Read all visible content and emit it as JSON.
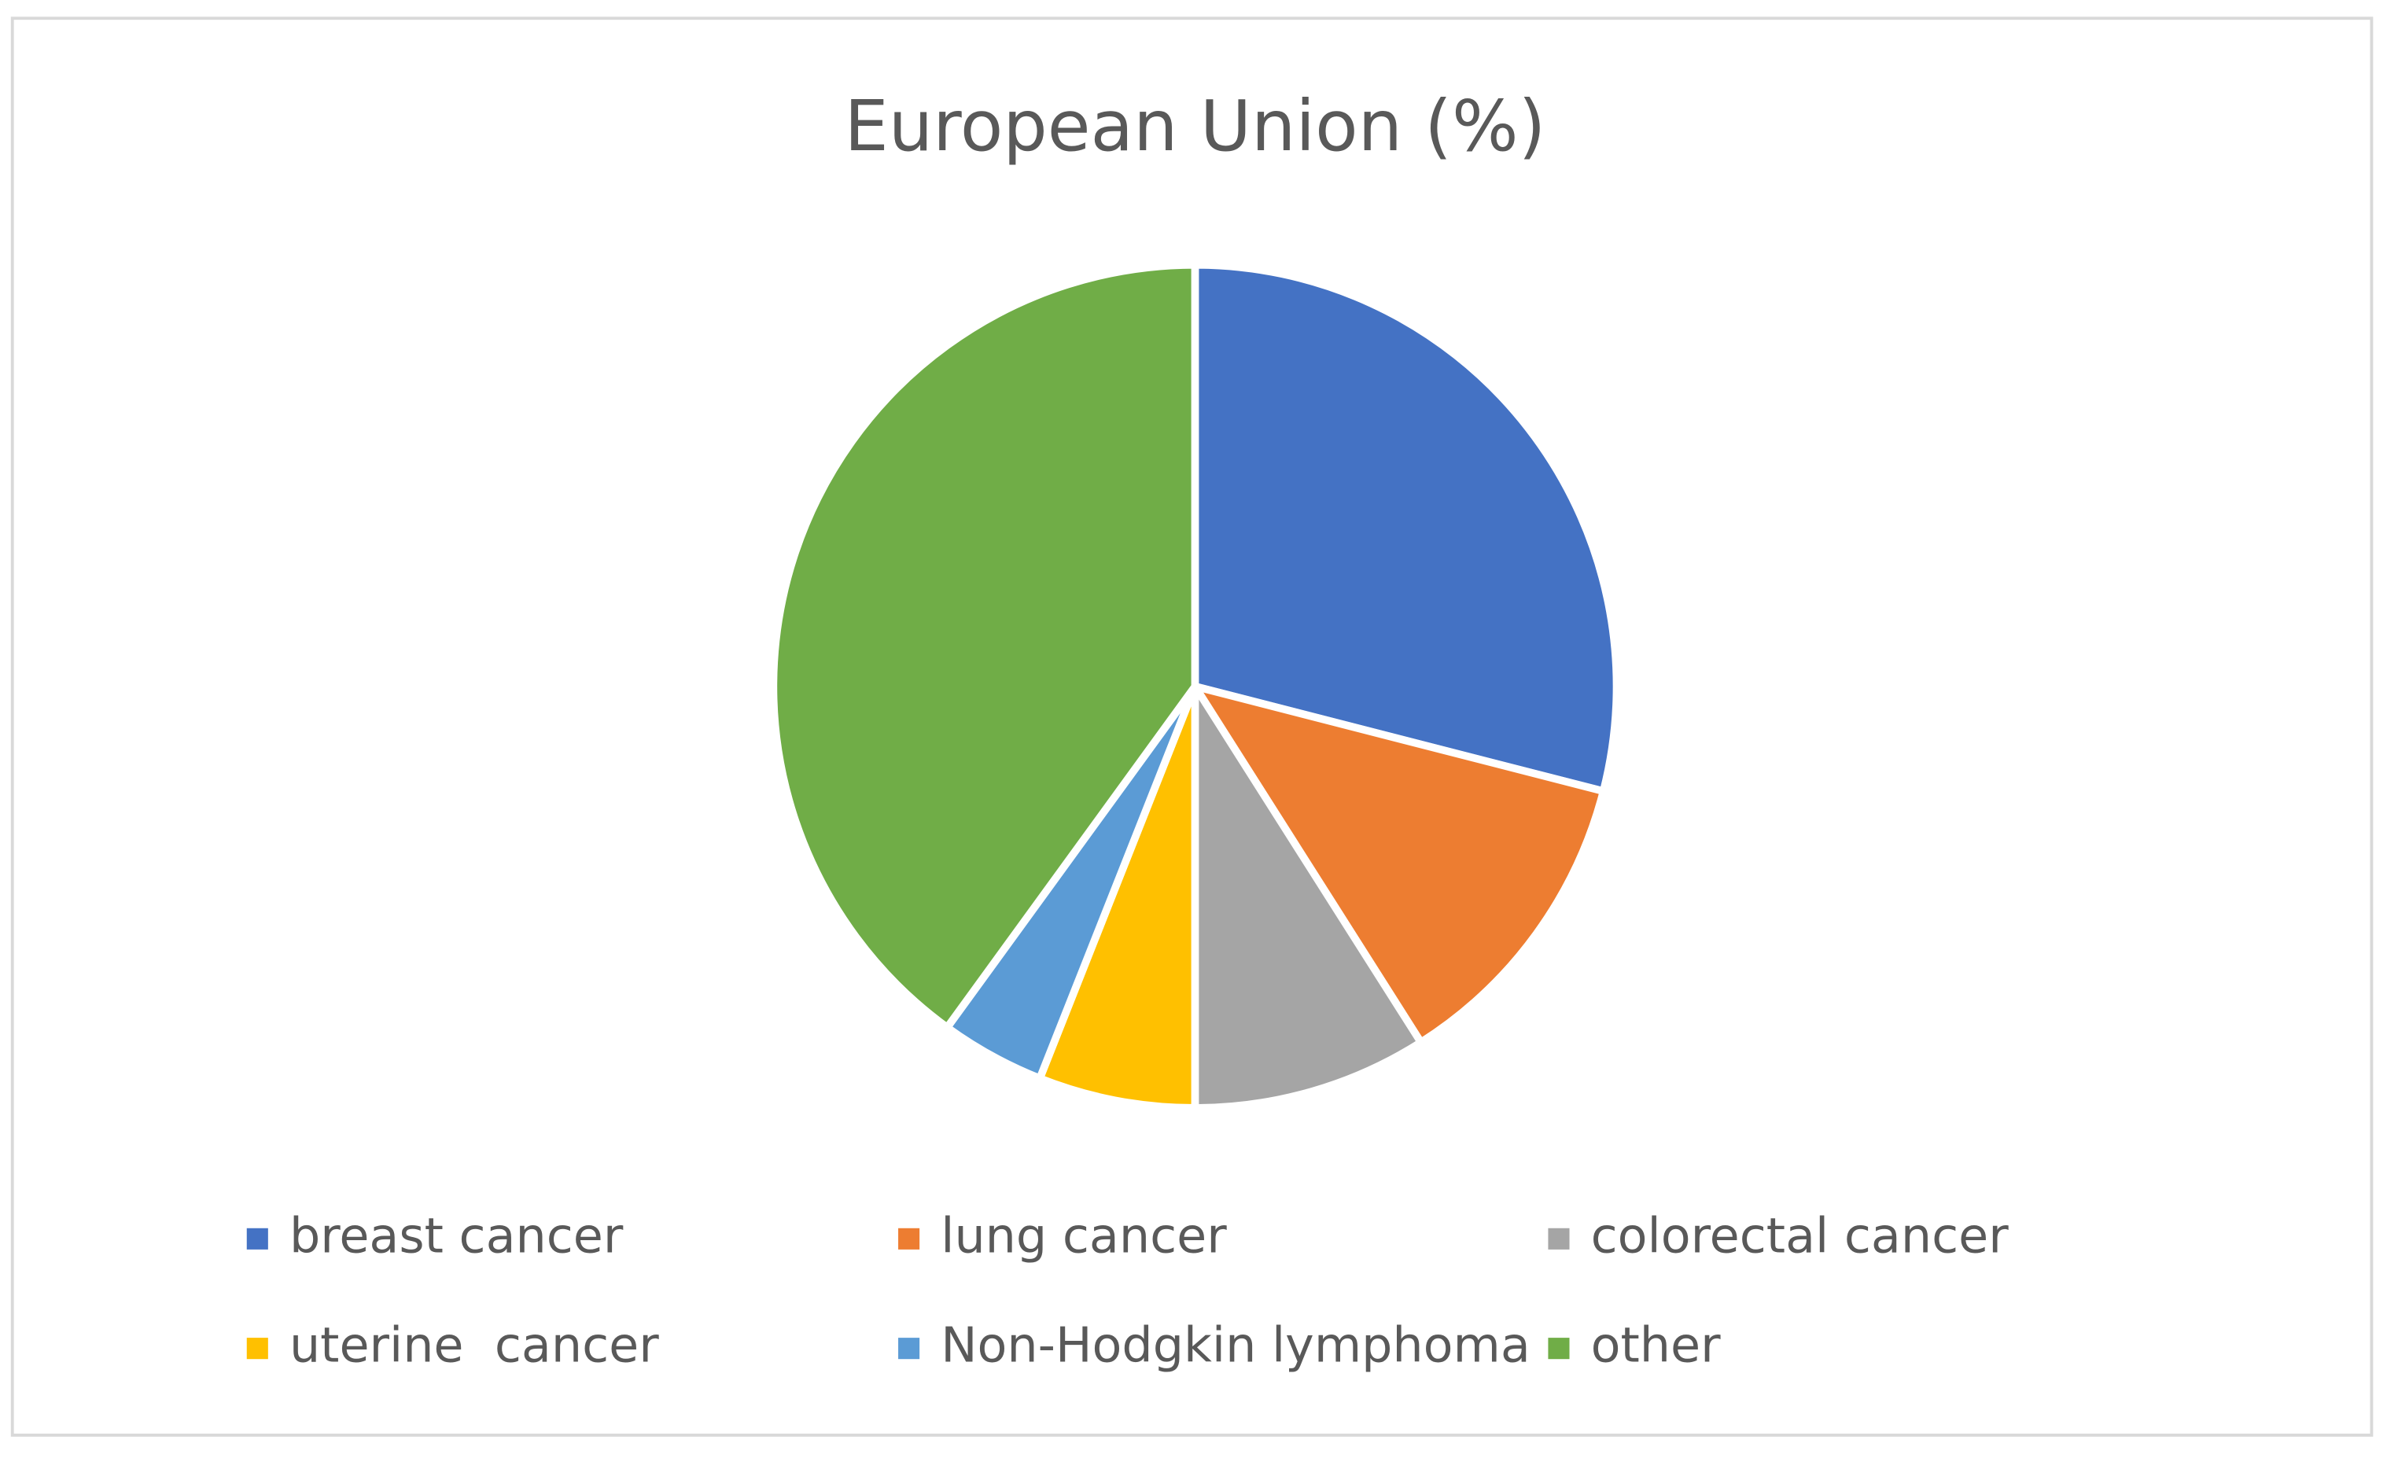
{
  "chart_data": {
    "type": "pie",
    "title": "European Union (%)",
    "categories": [
      "breast cancer",
      "lung cancer",
      "colorectal cancer",
      "uterine  cancer",
      "Non-Hodgkin lymphoma",
      "other"
    ],
    "values": [
      29,
      12,
      9,
      6,
      4,
      40
    ],
    "colors": [
      "#4472c4",
      "#ed7d31",
      "#a5a5a5",
      "#ffc000",
      "#5b9bd5",
      "#70ad47"
    ],
    "legend": "bottom"
  }
}
